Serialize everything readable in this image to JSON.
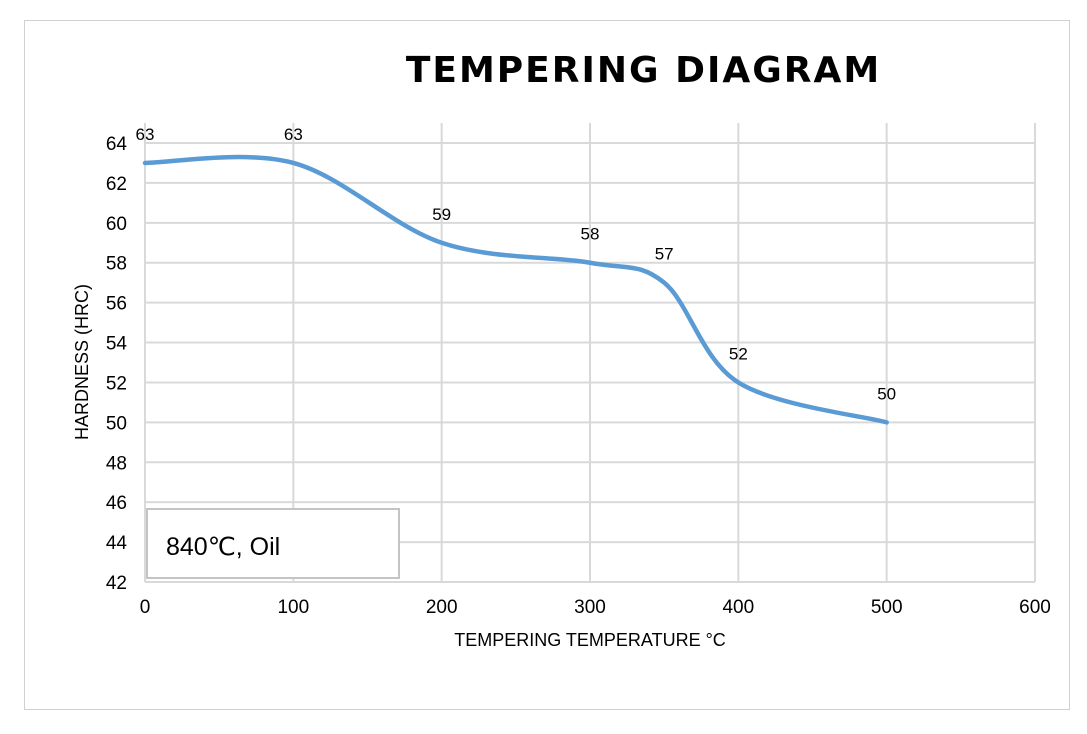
{
  "chart_data": {
    "type": "line",
    "title": "TEMPERING DIAGRAM",
    "xlabel": "TEMPERING TEMPERATURE °C",
    "ylabel": "HARDNESS (HRC)",
    "xlim": [
      0,
      600
    ],
    "ylim": [
      42,
      64
    ],
    "xticks": [
      0,
      100,
      200,
      300,
      400,
      500,
      600
    ],
    "yticks": [
      42,
      44,
      46,
      48,
      50,
      52,
      54,
      56,
      58,
      60,
      62,
      64
    ],
    "grid": true,
    "smooth": true,
    "series": [
      {
        "name": "Hardness",
        "color": "#5b9bd5",
        "x": [
          0,
          100,
          200,
          300,
          350,
          400,
          500
        ],
        "y": [
          63,
          63,
          59,
          58,
          57,
          52,
          50
        ]
      }
    ],
    "annotation": "840℃, Oil"
  }
}
